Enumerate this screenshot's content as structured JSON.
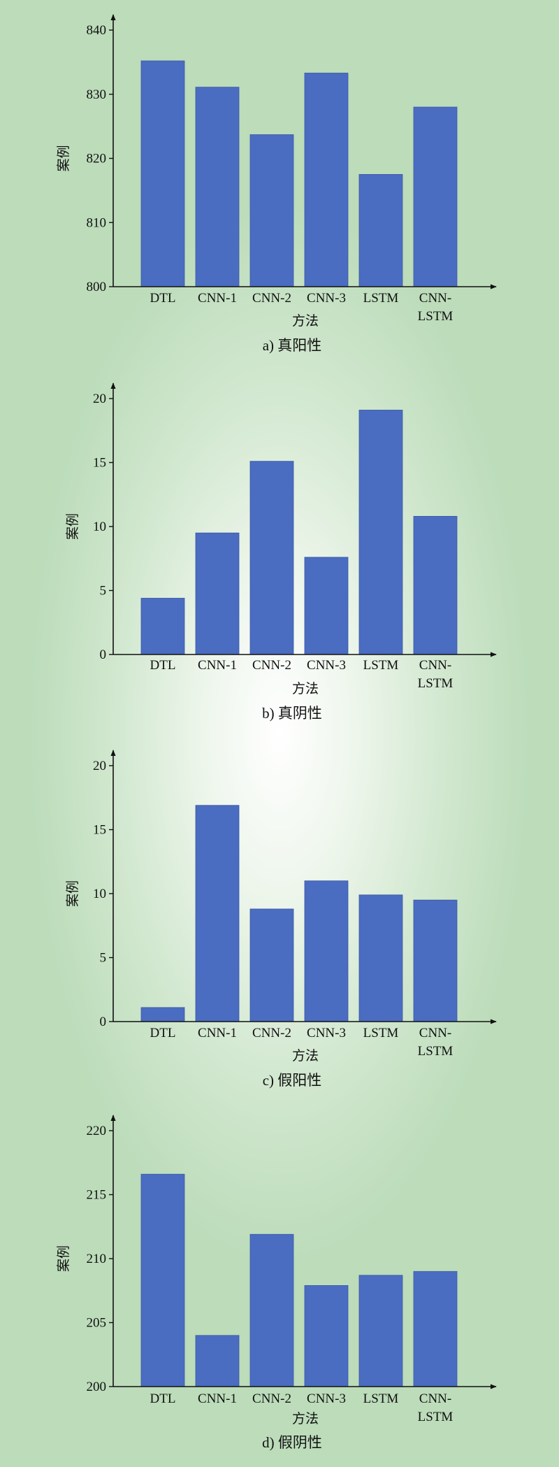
{
  "chart_data": [
    {
      "type": "bar",
      "caption": "a) 真阳性",
      "xlabel": "方法",
      "ylabel": "案例",
      "categories": [
        "DTL",
        "CNN-1",
        "CNN-2",
        "CNN-3",
        "LSTM",
        "CNN-\nLSTM"
      ],
      "values": [
        835.2,
        831.1,
        823.7,
        833.3,
        817.5,
        828.0
      ],
      "ylim": [
        800,
        840
      ],
      "yticks": [
        800,
        810,
        820,
        830,
        840
      ],
      "bar_color": "#4a6cc1",
      "grid": false
    },
    {
      "type": "bar",
      "caption": "b) 真阴性",
      "xlabel": "方法",
      "ylabel": "案例",
      "categories": [
        "DTL",
        "CNN-1",
        "CNN-2",
        "CNN-3",
        "LSTM",
        "CNN-\nLSTM"
      ],
      "values": [
        4.4,
        9.5,
        15.1,
        7.6,
        19.1,
        10.8
      ],
      "ylim": [
        0,
        20
      ],
      "yticks": [
        0,
        5,
        10,
        15,
        20
      ],
      "bar_color": "#4a6cc1",
      "grid": false
    },
    {
      "type": "bar",
      "caption": "c) 假阳性",
      "xlabel": "方法",
      "ylabel": "案例",
      "categories": [
        "DTL",
        "CNN-1",
        "CNN-2",
        "CNN-3",
        "LSTM",
        "CNN-\nLSTM"
      ],
      "values": [
        1.1,
        16.9,
        8.8,
        11.0,
        9.9,
        9.5
      ],
      "ylim": [
        0,
        20
      ],
      "yticks": [
        0,
        5,
        10,
        15,
        20
      ],
      "bar_color": "#4a6cc1",
      "grid": false
    },
    {
      "type": "bar",
      "caption": "d) 假阴性",
      "xlabel": "方法",
      "ylabel": "案例",
      "categories": [
        "DTL",
        "CNN-1",
        "CNN-2",
        "CNN-3",
        "LSTM",
        "CNN-\nLSTM"
      ],
      "values": [
        216.6,
        204.0,
        211.9,
        207.9,
        208.7,
        209.0
      ],
      "ylim": [
        200,
        220
      ],
      "yticks": [
        200,
        205,
        210,
        215,
        220
      ],
      "bar_color": "#4a6cc1",
      "grid": false
    }
  ]
}
